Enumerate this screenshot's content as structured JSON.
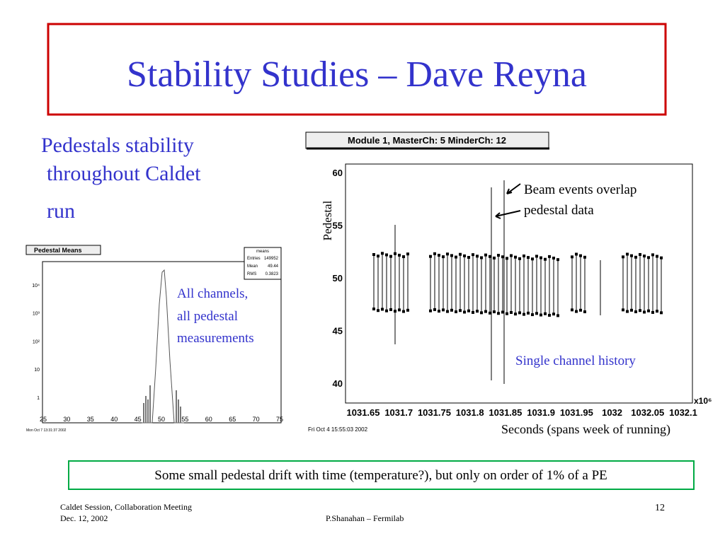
{
  "title": "Stability Studies – Dave Reyna",
  "bullet": {
    "lines": [
      "Pedestals stability",
      "throughout Caldet",
      "run"
    ]
  },
  "left_plot": {
    "title": "Pedestal Means",
    "stats": {
      "name": "means",
      "rows": [
        [
          "Entries",
          "149952"
        ],
        [
          "Mean",
          "49.44"
        ],
        [
          "RMS",
          "0.3823"
        ]
      ]
    },
    "yticks": [
      "10⁴",
      "10³",
      "10²",
      "10",
      "1"
    ],
    "xticks": [
      "25",
      "30",
      "35",
      "40",
      "45",
      "50",
      "55",
      "60",
      "65",
      "70",
      "75"
    ],
    "timestamp": "Mon Oct  7 13:31:37 2002"
  },
  "left_note": [
    "All channels,",
    "all pedestal",
    "measurements"
  ],
  "right_plot": {
    "title": "Module 1, MasterCh: 5 MinderCh: 12",
    "ylabel": "Pedestal",
    "yticks": [
      "60",
      "55",
      "50",
      "45",
      "40"
    ],
    "xticks": [
      "1031.65",
      "1031.7",
      "1031.75",
      "1031.8",
      "1031.85",
      "1031.9",
      "1031.95",
      "1032",
      "1032.05",
      "1032.1"
    ],
    "xscale": "x10⁶",
    "timestamp": "Fri Oct  4 15:55:03 2002",
    "annotation": [
      "Beam events overlap",
      "pedestal data"
    ],
    "note": "Single channel history",
    "xlabel": "Seconds (spans week of running)"
  },
  "summary": "Some small pedestal drift with time (temperature?), but only on order of 1% of a PE",
  "footer": {
    "left": [
      "Caldet Session, Collaboration Meeting",
      "Dec. 12, 2002"
    ],
    "center": "P.Shanahan – Fermilab",
    "page": "12"
  }
}
